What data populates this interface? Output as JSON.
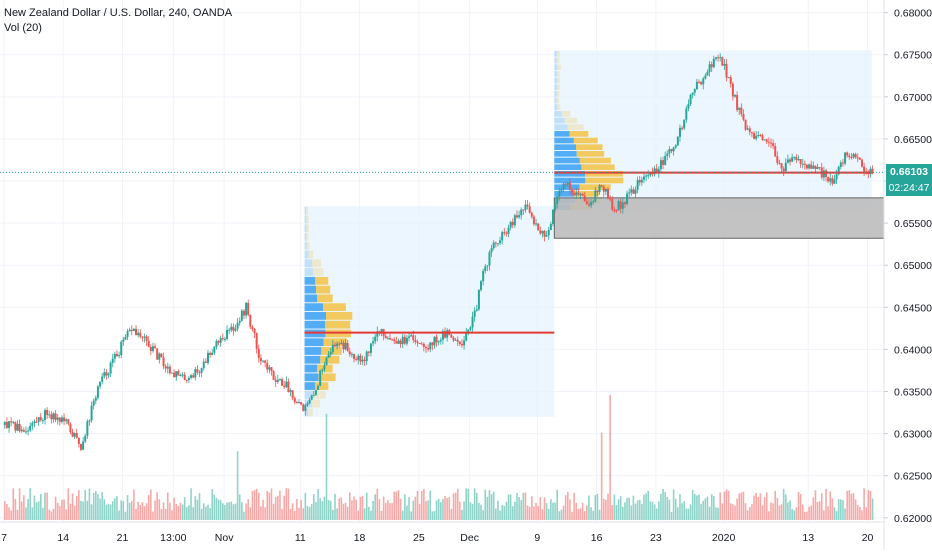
{
  "header": {
    "title": "New Zealand Dollar / U.S. Dollar, 240, OANDA",
    "volume_label": "Vol (20)"
  },
  "price_tags": {
    "last_price": "0.66103",
    "countdown": "02:24:47"
  },
  "colors": {
    "up": "#26a69a",
    "down": "#ef5350",
    "volume_up": "#8fd3c9",
    "volume_down": "#f7a9a7",
    "poc_line": "#e53935",
    "profile_bg": "#e3f2fd",
    "profile_blue": "#42a5f5",
    "profile_yellow": "#f5c243",
    "zone_fill": "#bdbdbd",
    "price_tag": "#26a69a"
  },
  "chart_data": {
    "type": "candlestick",
    "title": "New Zealand Dollar / U.S. Dollar, 240, OANDA",
    "ylim": [
      0.6195,
      0.6815
    ],
    "y_ticks": [
      "0.68000",
      "0.67500",
      "0.67000",
      "0.66500",
      "0.66000",
      "0.65500",
      "0.65000",
      "0.64500",
      "0.64000",
      "0.63500",
      "0.63000",
      "0.62500",
      "0.62000"
    ],
    "x_ticks": [
      {
        "label": "7",
        "pos": 0
      },
      {
        "label": "14",
        "pos": 14
      },
      {
        "label": "21",
        "pos": 28
      },
      {
        "label": "13:00",
        "pos": 40
      },
      {
        "label": "Nov",
        "pos": 52
      },
      {
        "label": "11",
        "pos": 70
      },
      {
        "label": "18",
        "pos": 84
      },
      {
        "label": "25",
        "pos": 98
      },
      {
        "label": "Dec",
        "pos": 110
      },
      {
        "label": "9",
        "pos": 126
      },
      {
        "label": "16",
        "pos": 140
      },
      {
        "label": "23",
        "pos": 154
      },
      {
        "label": "2020",
        "pos": 170
      },
      {
        "label": "13",
        "pos": 190
      },
      {
        "label": "20",
        "pos": 204
      }
    ],
    "price_path": [
      [
        0,
        0.631
      ],
      [
        5,
        0.6305
      ],
      [
        10,
        0.6325
      ],
      [
        14,
        0.6315
      ],
      [
        18,
        0.6285
      ],
      [
        22,
        0.6355
      ],
      [
        26,
        0.639
      ],
      [
        30,
        0.6425
      ],
      [
        34,
        0.6405
      ],
      [
        38,
        0.638
      ],
      [
        42,
        0.6365
      ],
      [
        46,
        0.6375
      ],
      [
        50,
        0.641
      ],
      [
        54,
        0.6425
      ],
      [
        57,
        0.645
      ],
      [
        60,
        0.6395
      ],
      [
        63,
        0.637
      ],
      [
        66,
        0.636
      ],
      [
        69,
        0.634
      ],
      [
        71,
        0.633
      ],
      [
        73,
        0.6345
      ],
      [
        76,
        0.6395
      ],
      [
        79,
        0.641
      ],
      [
        82,
        0.6395
      ],
      [
        85,
        0.639
      ],
      [
        88,
        0.642
      ],
      [
        91,
        0.6415
      ],
      [
        94,
        0.641
      ],
      [
        97,
        0.6412
      ],
      [
        100,
        0.6405
      ],
      [
        104,
        0.6418
      ],
      [
        108,
        0.641
      ],
      [
        111,
        0.644
      ],
      [
        113,
        0.649
      ],
      [
        115,
        0.652
      ],
      [
        117,
        0.653
      ],
      [
        120,
        0.655
      ],
      [
        123,
        0.657
      ],
      [
        126,
        0.6545
      ],
      [
        128,
        0.6535
      ],
      [
        130,
        0.657
      ],
      [
        132,
        0.66
      ],
      [
        135,
        0.6585
      ],
      [
        138,
        0.6575
      ],
      [
        141,
        0.6595
      ],
      [
        144,
        0.6565
      ],
      [
        147,
        0.658
      ],
      [
        150,
        0.66
      ],
      [
        153,
        0.661
      ],
      [
        156,
        0.6625
      ],
      [
        159,
        0.665
      ],
      [
        162,
        0.67
      ],
      [
        165,
        0.6725
      ],
      [
        168,
        0.6745
      ],
      [
        169,
        0.675
      ],
      [
        171,
        0.672
      ],
      [
        173,
        0.669
      ],
      [
        175,
        0.666
      ],
      [
        178,
        0.665
      ],
      [
        181,
        0.664
      ],
      [
        184,
        0.6615
      ],
      [
        187,
        0.663
      ],
      [
        190,
        0.6615
      ],
      [
        193,
        0.661
      ],
      [
        196,
        0.66
      ],
      [
        199,
        0.6635
      ],
      [
        202,
        0.662
      ],
      [
        205,
        0.661
      ]
    ],
    "volume_spikes": [
      {
        "pos": 76,
        "rel": 0.85
      },
      {
        "pos": 141,
        "rel": 0.7
      },
      {
        "pos": 143,
        "rel": 1.0
      },
      {
        "pos": 55,
        "rel": 0.55
      }
    ],
    "profiles": [
      {
        "x_start": 71,
        "x_end": 130,
        "y_top": 0.657,
        "y_bottom": 0.632,
        "poc": 0.642
      },
      {
        "x_start": 130,
        "x_end": 205,
        "y_top": 0.6755,
        "y_bottom": 0.6565,
        "poc": 0.661
      }
    ],
    "zone": {
      "x_start": 130,
      "y_top": 0.658,
      "y_bottom": 0.6532
    }
  }
}
